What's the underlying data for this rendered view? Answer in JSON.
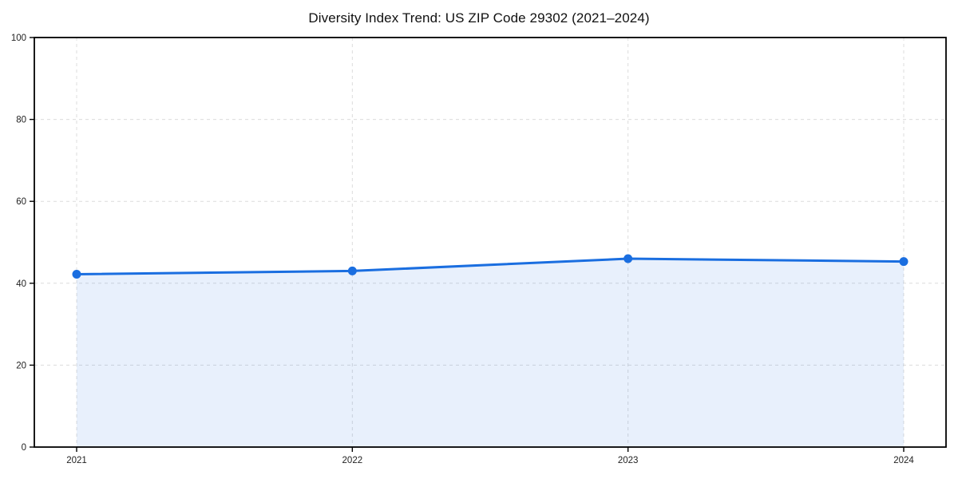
{
  "chart_data": {
    "type": "line",
    "title": "Diversity Index Trend: US ZIP Code 29302 (2021–2024)",
    "x": [
      "2021",
      "2022",
      "2023",
      "2024"
    ],
    "series": [
      {
        "name": "Diversity Index",
        "values": [
          42.2,
          43.0,
          46.0,
          45.3
        ]
      }
    ],
    "xlabel": "",
    "ylabel": "",
    "ylim": [
      0,
      100
    ],
    "yticks": [
      0,
      20,
      40,
      60,
      80,
      100
    ],
    "grid": true,
    "grid_style": "dashed",
    "legend_position": "none",
    "area_fill": true,
    "colors": {
      "line": "#1a6ee0",
      "marker": "#1a6ee0",
      "area": "rgba(26,110,224,0.10)",
      "grid": "#dcdcdc",
      "spine": "#000000",
      "tick_label": "#222222",
      "title": "#111111",
      "background": "#ffffff"
    }
  }
}
